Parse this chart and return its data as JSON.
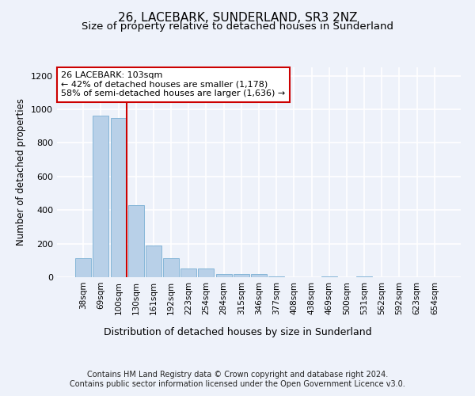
{
  "title": "26, LACEBARK, SUNDERLAND, SR3 2NZ",
  "subtitle": "Size of property relative to detached houses in Sunderland",
  "xlabel": "Distribution of detached houses by size in Sunderland",
  "ylabel": "Number of detached properties",
  "categories": [
    "38sqm",
    "69sqm",
    "100sqm",
    "130sqm",
    "161sqm",
    "192sqm",
    "223sqm",
    "254sqm",
    "284sqm",
    "315sqm",
    "346sqm",
    "377sqm",
    "408sqm",
    "438sqm",
    "469sqm",
    "500sqm",
    "531sqm",
    "562sqm",
    "592sqm",
    "623sqm",
    "654sqm"
  ],
  "values": [
    115,
    960,
    950,
    430,
    190,
    115,
    50,
    50,
    20,
    20,
    20,
    5,
    0,
    0,
    5,
    0,
    5,
    0,
    0,
    0,
    0
  ],
  "bar_color": "#b8d0e8",
  "bar_edge_color": "#7aafd4",
  "marker_index": 2,
  "marker_color": "#cc0000",
  "annotation_text": "26 LACEBARK: 103sqm\n← 42% of detached houses are smaller (1,178)\n58% of semi-detached houses are larger (1,636) →",
  "annotation_box_color": "#ffffff",
  "annotation_box_edge": "#cc0000",
  "ylim": [
    0,
    1250
  ],
  "yticks": [
    0,
    200,
    400,
    600,
    800,
    1000,
    1200
  ],
  "background_color": "#eef2fa",
  "grid_color": "#ffffff",
  "footer": "Contains HM Land Registry data © Crown copyright and database right 2024.\nContains public sector information licensed under the Open Government Licence v3.0.",
  "title_fontsize": 11,
  "subtitle_fontsize": 9.5,
  "xlabel_fontsize": 9,
  "ylabel_fontsize": 8.5,
  "footer_fontsize": 7,
  "tick_fontsize": 7.5,
  "ytick_fontsize": 8
}
